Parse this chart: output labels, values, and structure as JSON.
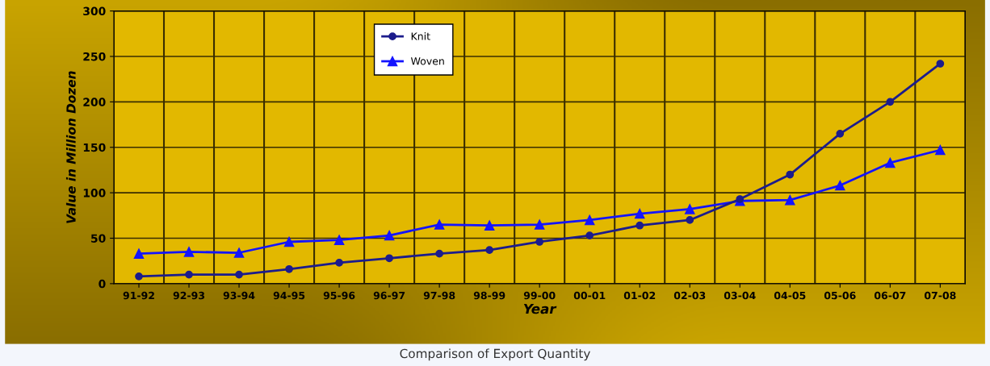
{
  "chart_data": {
    "type": "line",
    "xlabel": "Year",
    "ylabel": "Value in Million Dozen",
    "categories": [
      "91-92",
      "92-93",
      "93-94",
      "94-95",
      "95-96",
      "96-97",
      "97-98",
      "98-99",
      "99-00",
      "00-01",
      "01-02",
      "02-03",
      "03-04",
      "04-05",
      "05-06",
      "06-07",
      "07-08"
    ],
    "series": [
      {
        "name": "Knit",
        "color": "#1c1c8c",
        "marker": "circle",
        "values": [
          8,
          10,
          10,
          16,
          23,
          28,
          33,
          37,
          46,
          53,
          64,
          70,
          93,
          120,
          165,
          200,
          242
        ]
      },
      {
        "name": "Woven",
        "color": "#1414ff",
        "marker": "triangle",
        "values": [
          33,
          35,
          34,
          46,
          48,
          53,
          65,
          64,
          65,
          70,
          77,
          82,
          91,
          92,
          108,
          133,
          147
        ]
      }
    ],
    "ylim": [
      0,
      300
    ],
    "yticks": [
      0,
      50,
      100,
      150,
      200,
      250,
      300
    ],
    "grid": true,
    "legend": "top",
    "line_style": "solid",
    "annotations": [
      "Comparison of Export Quantity"
    ]
  }
}
